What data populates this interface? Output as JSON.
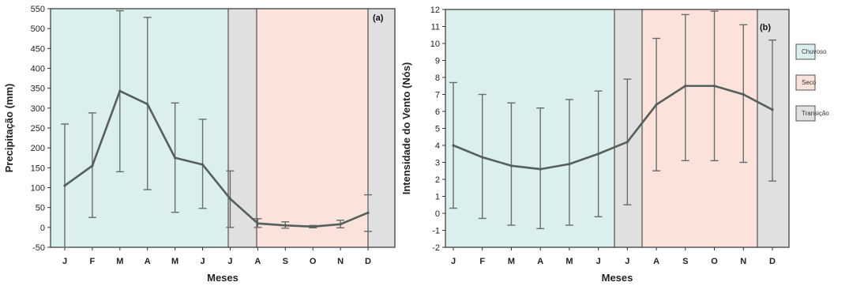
{
  "months": [
    "J",
    "F",
    "M",
    "A",
    "M",
    "J",
    "J",
    "A",
    "S",
    "O",
    "N",
    "D"
  ],
  "colors": {
    "rainy": "#dcefef",
    "dry": "#fbe2da",
    "transition": "#e0e0e0",
    "line": "#555f5c",
    "errorbar": "#666e6b"
  },
  "legend": {
    "items": [
      {
        "label": "Chuvoso",
        "season": "rainy"
      },
      {
        "label": "Seco",
        "season": "dry"
      },
      {
        "label": "Transição",
        "season": "transition"
      }
    ]
  },
  "chart_data": [
    {
      "type": "line",
      "panel_label": "(a)",
      "xlabel": "Meses",
      "ylabel": "Precipitação (mm)",
      "categories": [
        "J",
        "F",
        "M",
        "A",
        "M",
        "J",
        "J",
        "A",
        "S",
        "O",
        "N",
        "D"
      ],
      "ylim": [
        -50,
        550
      ],
      "yticks": [
        -50,
        0,
        50,
        100,
        150,
        200,
        250,
        300,
        350,
        400,
        450,
        500,
        550
      ],
      "grid": false,
      "series": [
        {
          "values": [
            105,
            155,
            343,
            310,
            175,
            158,
            72,
            10,
            5,
            2,
            8,
            37
          ],
          "error_low": [
            -50,
            25,
            140,
            95,
            38,
            48,
            0,
            0,
            -2,
            -1,
            -1,
            -10
          ],
          "error_high": [
            260,
            288,
            545,
            528,
            313,
            272,
            142,
            22,
            14,
            5,
            18,
            82
          ]
        }
      ],
      "seasons": [
        {
          "season": "rainy",
          "from": "J",
          "to": "J"
        },
        {
          "season": "transition",
          "from": "J",
          "to": "A"
        },
        {
          "season": "dry",
          "from": "A",
          "to": "D"
        },
        {
          "season": "transition",
          "from": "D",
          "to": "D"
        }
      ]
    },
    {
      "type": "line",
      "panel_label": "(b)",
      "xlabel": "Meses",
      "ylabel": "Intensidade do Vento (Nós)",
      "categories": [
        "J",
        "F",
        "M",
        "A",
        "M",
        "J",
        "J",
        "A",
        "S",
        "O",
        "N",
        "D"
      ],
      "ylim": [
        -2,
        12
      ],
      "yticks": [
        -2,
        -1,
        0,
        1,
        2,
        3,
        4,
        5,
        6,
        7,
        8,
        9,
        10,
        11,
        12
      ],
      "grid": false,
      "series": [
        {
          "values": [
            4.0,
            3.3,
            2.8,
            2.6,
            2.9,
            3.5,
            4.2,
            6.4,
            7.5,
            7.5,
            7.0,
            6.1
          ],
          "error_low": [
            0.3,
            -0.3,
            -0.7,
            -0.9,
            -0.7,
            -0.2,
            0.5,
            2.5,
            3.1,
            3.1,
            3.0,
            1.9
          ],
          "error_high": [
            7.7,
            7.0,
            6.5,
            6.2,
            6.7,
            7.2,
            7.9,
            10.3,
            11.7,
            11.9,
            11.1,
            10.2
          ]
        }
      ],
      "seasons": [
        {
          "season": "rainy",
          "from": "J",
          "to": "J"
        },
        {
          "season": "transition",
          "from": "J",
          "to": "A"
        },
        {
          "season": "dry",
          "from": "A",
          "to": "D"
        },
        {
          "season": "transition",
          "from": "D",
          "to": "D"
        }
      ]
    }
  ]
}
